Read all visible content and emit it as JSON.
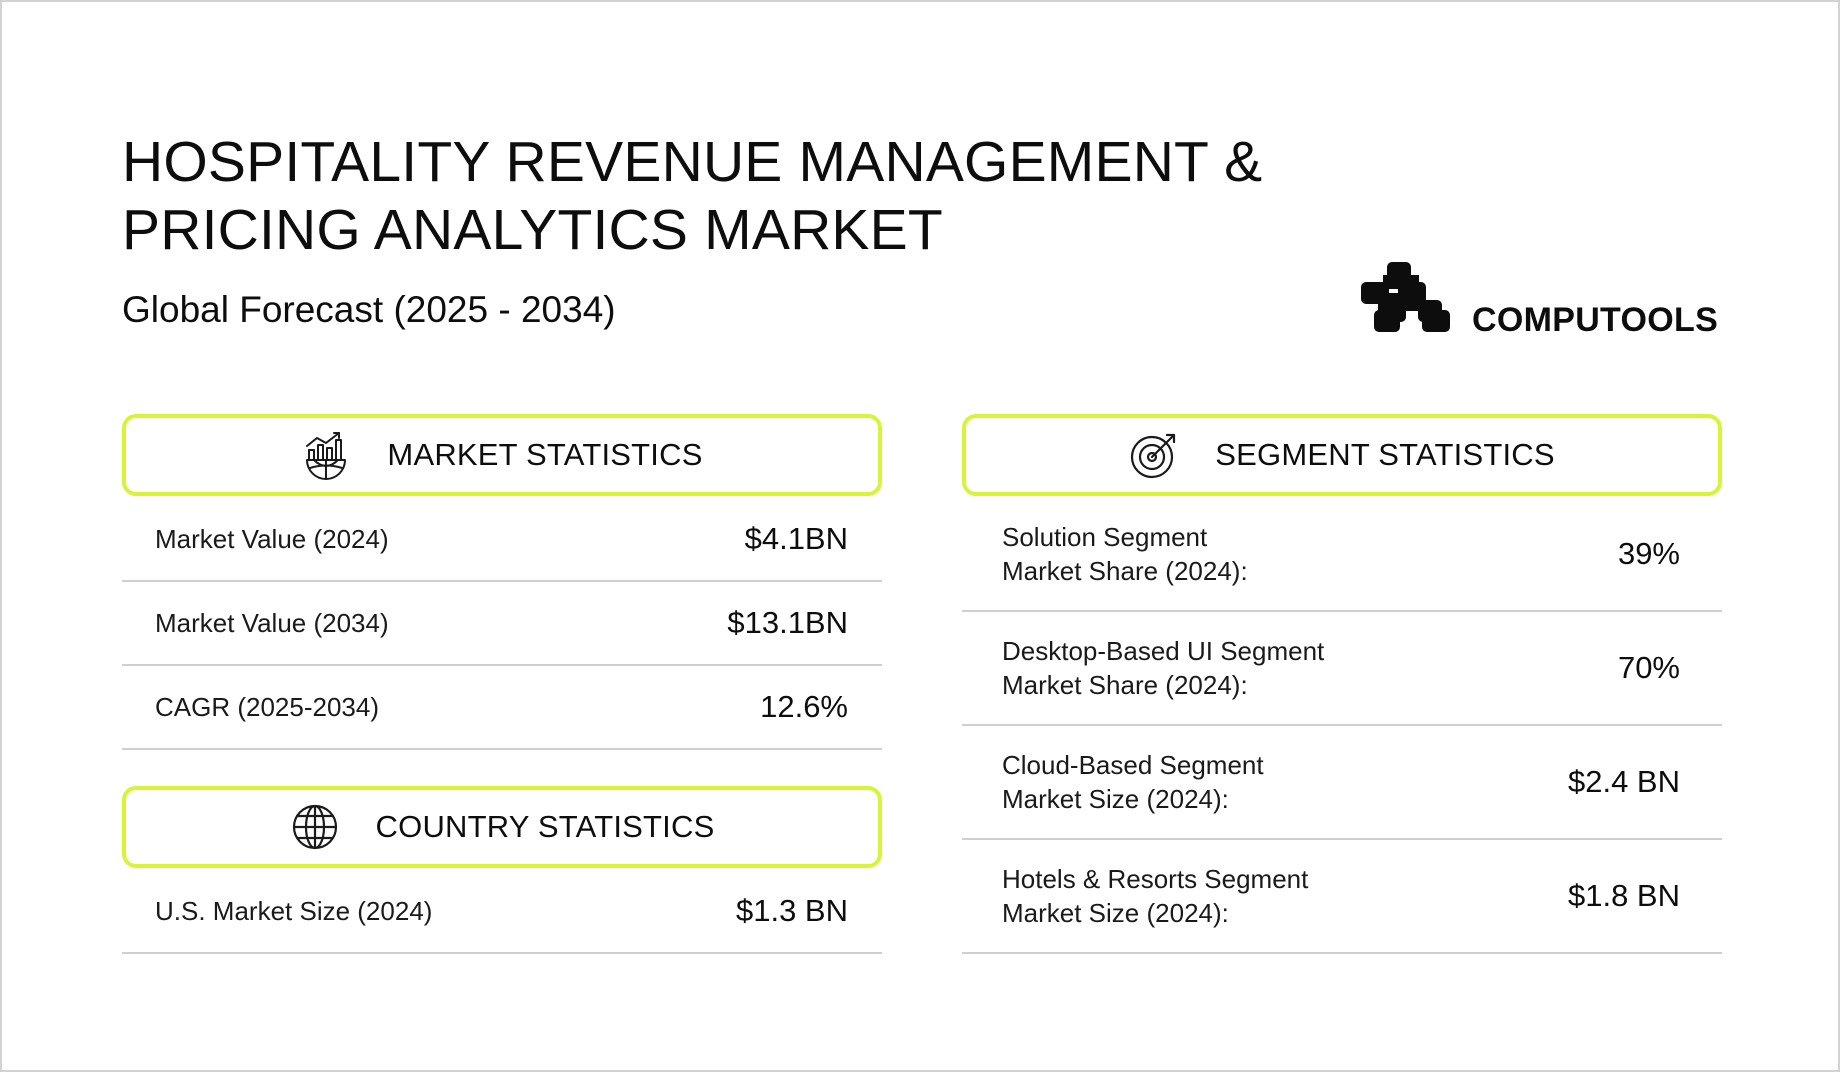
{
  "header": {
    "title_line1": "HOSPITALITY REVENUE MANAGEMENT &",
    "title_line2": "PRICING ANALYTICS MARKET",
    "subtitle": "Global Forecast (2025 - 2034)"
  },
  "brand": {
    "name": "COMPUTOOLS",
    "logo_icon": "computools-logo-icon",
    "color": "#0d0d0d"
  },
  "accent_color": "#d7f536",
  "market_statistics": {
    "heading": "MARKET STATISTICS",
    "icon": "growth-chart-globe-icon",
    "rows": [
      {
        "label": "Market Value (2024)",
        "value": "$4.1BN"
      },
      {
        "label": "Market Value (2034)",
        "value": "$13.1BN"
      },
      {
        "label": "CAGR (2025-2034)",
        "value": "12.6%"
      }
    ]
  },
  "country_statistics": {
    "heading": "COUNTRY STATISTICS",
    "icon": "globe-icon",
    "rows": [
      {
        "label": "U.S. Market Size (2024)",
        "value": "$1.3 BN"
      }
    ]
  },
  "segment_statistics": {
    "heading": "SEGMENT STATISTICS",
    "icon": "target-icon",
    "rows": [
      {
        "label_line1": "Solution Segment",
        "label_line2": "Market Share (2024):",
        "value": "39%"
      },
      {
        "label_line1": "Desktop-Based UI Segment",
        "label_line2": "Market Share (2024):",
        "value": "70%"
      },
      {
        "label_line1": "Cloud-Based Segment",
        "label_line2": "Market Size (2024):",
        "value": "$2.4 BN"
      },
      {
        "label_line1": "Hotels & Resorts Segment",
        "label_line2": "Market Size (2024):",
        "value": "$1.8 BN"
      }
    ]
  }
}
